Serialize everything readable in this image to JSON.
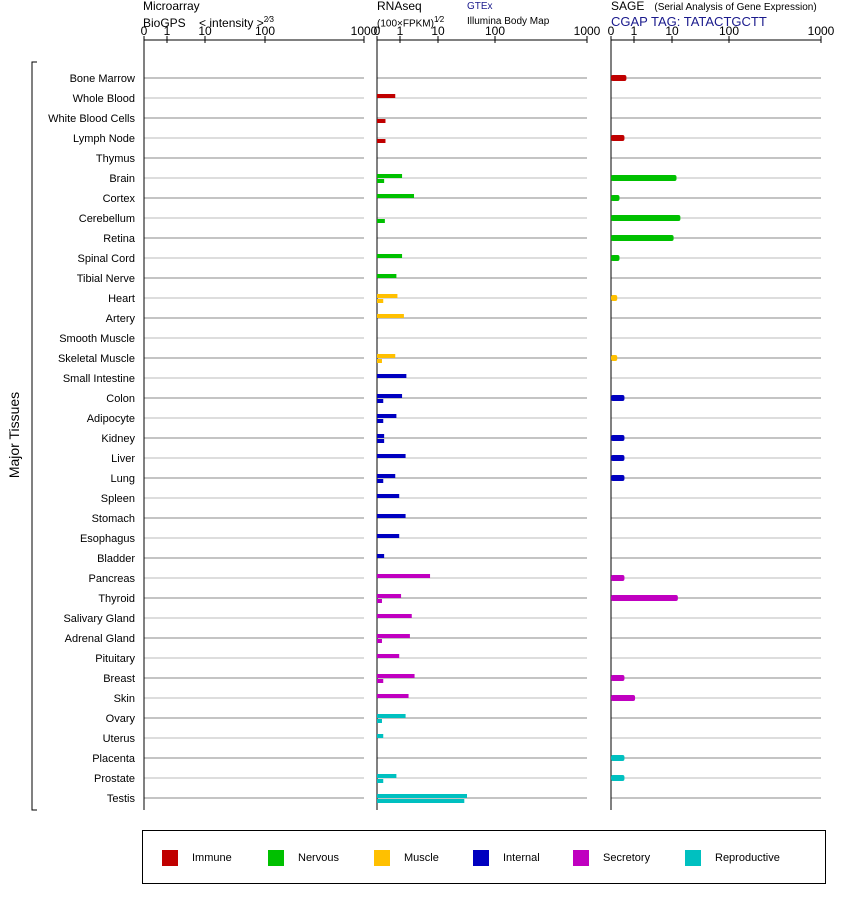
{
  "headers": {
    "microarray": {
      "line1": "Microarray",
      "line2": "BioGPS",
      "intensity": "< intensity >",
      "exponent": "2⁄3"
    },
    "rnaseq": {
      "line1": "RNAseq",
      "unit": "(100×FPKM)",
      "exponent": "1⁄2",
      "gtex": "GTEx",
      "bodymap": "Illumina Body Map"
    },
    "sage": {
      "title": "SAGE",
      "subtitle": "(Serial Analysis of Gene Expression)",
      "tag": "CGAP TAG: TATACTGCTT"
    }
  },
  "side_label": "Major Tissues",
  "legend": [
    {
      "label": "Immune",
      "color": "#c00000"
    },
    {
      "label": "Nervous",
      "color": "#00c000"
    },
    {
      "label": "Muscle",
      "color": "#ffc000"
    },
    {
      "label": "Internal",
      "color": "#0000c0"
    },
    {
      "label": "Secretory",
      "color": "#c000c0"
    },
    {
      "label": "Reproductive",
      "color": "#00c0c0"
    }
  ],
  "chart_data": {
    "type": "bar",
    "orientation": "horizontal",
    "scale": "power",
    "tick_labels": [
      "0",
      "1",
      "10",
      "100",
      "1000"
    ],
    "panels": [
      {
        "name": "microarray",
        "xlim": [
          0,
          1000
        ],
        "series": [
          "BioGPS"
        ]
      },
      {
        "name": "rnaseq",
        "xlim": [
          0,
          1000
        ],
        "series": [
          "GTEx",
          "Illumina Body Map"
        ]
      },
      {
        "name": "sage",
        "xlim": [
          0,
          1000
        ],
        "series": [
          "SAGE"
        ]
      }
    ],
    "categories": [
      {
        "tissue": "Bone Marrow",
        "group": "Immune",
        "microarray": 0,
        "gtex": 0,
        "bodymap": 0,
        "sage": 0.3
      },
      {
        "tissue": "Whole Blood",
        "group": "Immune",
        "microarray": 0,
        "gtex": 0.5,
        "bodymap": 0,
        "sage": 0
      },
      {
        "tissue": "White Blood Cells",
        "group": "Immune",
        "microarray": 0,
        "gtex": 0,
        "bodymap": 0.05,
        "sage": 0
      },
      {
        "tissue": "Lymph Node",
        "group": "Immune",
        "microarray": 0,
        "gtex": 0,
        "bodymap": 0.05,
        "sage": 0.2
      },
      {
        "tissue": "Thymus",
        "group": "Immune",
        "microarray": 0,
        "gtex": 0,
        "bodymap": 0,
        "sage": 0
      },
      {
        "tissue": "Brain",
        "group": "Nervous",
        "microarray": 0,
        "gtex": 1.2,
        "bodymap": 0.03,
        "sage": 13
      },
      {
        "tissue": "Cortex",
        "group": "Nervous",
        "microarray": 0,
        "gtex": 2.9,
        "bodymap": 0,
        "sage": 0.05
      },
      {
        "tissue": "Cerebellum",
        "group": "Nervous",
        "microarray": 0,
        "gtex": 0,
        "bodymap": 0.04,
        "sage": 16
      },
      {
        "tissue": "Retina",
        "group": "Nervous",
        "microarray": 0,
        "gtex": 0,
        "bodymap": 0,
        "sage": 11
      },
      {
        "tissue": "Spinal Cord",
        "group": "Nervous",
        "microarray": 0,
        "gtex": 1.2,
        "bodymap": 0,
        "sage": 0.05
      },
      {
        "tissue": "Tibial Nerve",
        "group": "Nervous",
        "microarray": 0,
        "gtex": 0.6,
        "bodymap": 0,
        "sage": 0
      },
      {
        "tissue": "Heart",
        "group": "Muscle",
        "microarray": 0,
        "gtex": 0.7,
        "bodymap": 0.02,
        "sage": 0.02
      },
      {
        "tissue": "Artery",
        "group": "Muscle",
        "microarray": 0,
        "gtex": 1.4,
        "bodymap": 0,
        "sage": 0
      },
      {
        "tissue": "Smooth Muscle",
        "group": "Muscle",
        "microarray": 0,
        "gtex": 0,
        "bodymap": 0,
        "sage": 0
      },
      {
        "tissue": "Skeletal Muscle",
        "group": "Muscle",
        "microarray": 0,
        "gtex": 0.5,
        "bodymap": 0.01,
        "sage": 0.02
      },
      {
        "tissue": "Small Intestine",
        "group": "Internal",
        "microarray": 0,
        "gtex": 1.7,
        "bodymap": 0,
        "sage": 0
      },
      {
        "tissue": "Colon",
        "group": "Internal",
        "microarray": 0,
        "gtex": 1.2,
        "bodymap": 0.02,
        "sage": 0.2
      },
      {
        "tissue": "Adipocyte",
        "group": "Internal",
        "microarray": 0,
        "gtex": 0.6,
        "bodymap": 0.02,
        "sage": 0
      },
      {
        "tissue": "Kidney",
        "group": "Internal",
        "microarray": 0,
        "gtex": 0.03,
        "bodymap": 0.03,
        "sage": 0.2
      },
      {
        "tissue": "Liver",
        "group": "Internal",
        "microarray": 0,
        "gtex": 1.6,
        "bodymap": 0,
        "sage": 0.2
      },
      {
        "tissue": "Lung",
        "group": "Internal",
        "microarray": 0,
        "gtex": 0.5,
        "bodymap": 0.02,
        "sage": 0.2
      },
      {
        "tissue": "Spleen",
        "group": "Internal",
        "microarray": 0,
        "gtex": 0.9,
        "bodymap": 0,
        "sage": 0
      },
      {
        "tissue": "Stomach",
        "group": "Internal",
        "microarray": 0,
        "gtex": 1.6,
        "bodymap": 0,
        "sage": 0
      },
      {
        "tissue": "Esophagus",
        "group": "Internal",
        "microarray": 0,
        "gtex": 0.9,
        "bodymap": 0,
        "sage": 0
      },
      {
        "tissue": "Bladder",
        "group": "Internal",
        "microarray": 0,
        "gtex": 0.03,
        "bodymap": 0,
        "sage": 0
      },
      {
        "tissue": "Pancreas",
        "group": "Secretory",
        "microarray": 0,
        "gtex": 7,
        "bodymap": 0,
        "sage": 0.2
      },
      {
        "tissue": "Thyroid",
        "group": "Secretory",
        "microarray": 0,
        "gtex": 1.1,
        "bodymap": 0.01,
        "sage": 14
      },
      {
        "tissue": "Salivary Gland",
        "group": "Secretory",
        "microarray": 0,
        "gtex": 2.5,
        "bodymap": 0,
        "sage": 0
      },
      {
        "tissue": "Adrenal Gland",
        "group": "Secretory",
        "microarray": 0,
        "gtex": 2.2,
        "bodymap": 0.01,
        "sage": 0
      },
      {
        "tissue": "Pituitary",
        "group": "Secretory",
        "microarray": 0,
        "gtex": 0.9,
        "bodymap": 0,
        "sage": 0
      },
      {
        "tissue": "Breast",
        "group": "Secretory",
        "microarray": 0,
        "gtex": 3,
        "bodymap": 0.02,
        "sage": 0.2
      },
      {
        "tissue": "Skin",
        "group": "Secretory",
        "microarray": 0,
        "gtex": 2,
        "bodymap": 0,
        "sage": 1.1
      },
      {
        "tissue": "Ovary",
        "group": "Reproductive",
        "microarray": 0,
        "gtex": 1.6,
        "bodymap": 0.01,
        "sage": 0
      },
      {
        "tissue": "Uterus",
        "group": "Reproductive",
        "microarray": 0,
        "gtex": 0.02,
        "bodymap": 0,
        "sage": 0
      },
      {
        "tissue": "Placenta",
        "group": "Reproductive",
        "microarray": 0,
        "gtex": 0,
        "bodymap": 0,
        "sage": 0.2
      },
      {
        "tissue": "Prostate",
        "group": "Reproductive",
        "microarray": 0,
        "gtex": 0.6,
        "bodymap": 0.02,
        "sage": 0.2
      },
      {
        "tissue": "Testis",
        "group": "Reproductive",
        "microarray": 0,
        "gtex": 40,
        "bodymap": 36,
        "sage": 0
      }
    ]
  }
}
